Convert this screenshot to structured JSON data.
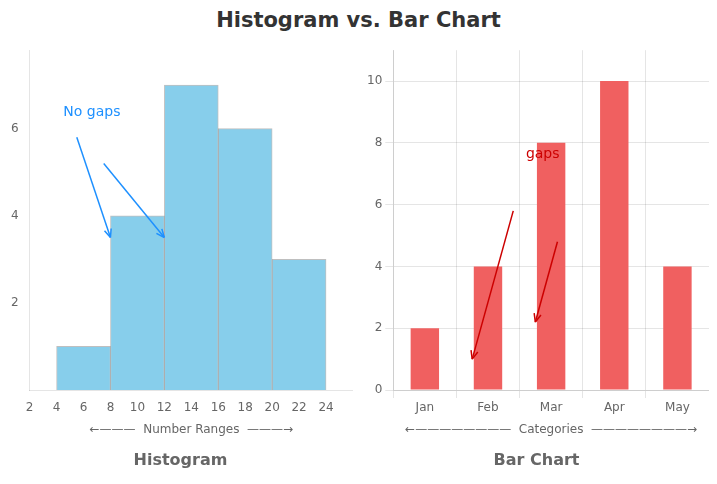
{
  "title": "Histogram vs. Bar Chart",
  "chart_data": [
    {
      "type": "histogram",
      "title": "Histogram",
      "xlabel": "←———  Number Ranges  ———→",
      "bins": [
        4,
        8,
        12,
        16,
        20,
        24
      ],
      "values": [
        1,
        4,
        7,
        6,
        3
      ],
      "color": "#87ceeb",
      "xlim": [
        2,
        26
      ],
      "xticks": [
        2,
        4,
        6,
        8,
        10,
        12,
        14,
        16,
        18,
        20,
        22,
        24
      ],
      "ylim": [
        0,
        7.8
      ],
      "yticks": [
        2,
        4,
        6
      ],
      "grid": false,
      "annotations": [
        {
          "text": "No gaps",
          "x": 4.5,
          "y": 6.3,
          "color": "#1e90ff",
          "arrows": [
            {
              "from": [
                5.5,
                5.8
              ],
              "to": [
                8.0,
                3.5
              ]
            },
            {
              "from": [
                7.5,
                5.2
              ],
              "to": [
                12.0,
                3.5
              ]
            }
          ]
        }
      ]
    },
    {
      "type": "bar",
      "title": "Bar Chart",
      "xlabel": "←————————  Categories  ————————→",
      "categories": [
        "Jan",
        "Feb",
        "Mar",
        "Apr",
        "May"
      ],
      "values": [
        2,
        4,
        8,
        10,
        4
      ],
      "color": "#f06060",
      "ylim": [
        0,
        11
      ],
      "yticks": [
        0,
        2,
        4,
        6,
        8,
        10
      ],
      "grid": true,
      "annotations": [
        {
          "text": "gaps",
          "x": 1.6,
          "y": 7.5,
          "color": "#cc0000",
          "arrows": [
            {
              "from": [
                1.4,
                5.8
              ],
              "to": [
                0.75,
                1.0
              ]
            },
            {
              "from": [
                2.1,
                4.8
              ],
              "to": [
                1.75,
                2.2
              ]
            }
          ]
        }
      ]
    }
  ]
}
